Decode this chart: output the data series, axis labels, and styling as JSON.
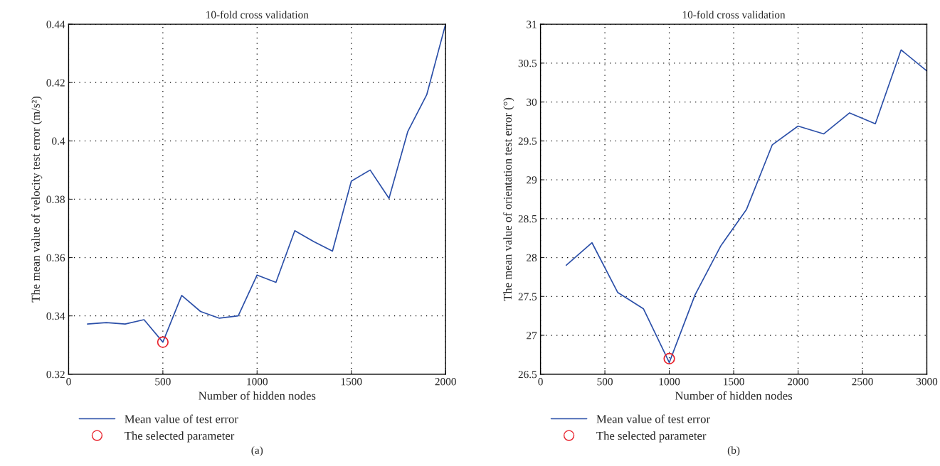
{
  "chart_data": [
    {
      "type": "line",
      "title": "10-fold cross validation",
      "xlabel": "Number of hidden nodes",
      "ylabel": "The mean value of velocity test error (m/s²)",
      "xlim": [
        0,
        2000
      ],
      "xticks": [
        0,
        500,
        1000,
        1500,
        2000
      ],
      "ylim": [
        0.32,
        0.44
      ],
      "yticks": [
        0.32,
        0.34,
        0.36,
        0.38,
        0.4,
        0.42,
        0.44
      ],
      "grid": true,
      "legend": "bottom",
      "annotations": [
        "(a)"
      ],
      "series": [
        {
          "name": "Mean value of test error",
          "color": "#2b4fa8",
          "marker": "none",
          "x": [
            100,
            200,
            300,
            400,
            500,
            600,
            700,
            800,
            900,
            1000,
            1100,
            1200,
            1300,
            1400,
            1500,
            1600,
            1700,
            1800,
            1900,
            2000
          ],
          "values": [
            0.3372,
            0.3377,
            0.3372,
            0.3387,
            0.331,
            0.347,
            0.3415,
            0.3392,
            0.34,
            0.354,
            0.3515,
            0.3692,
            0.3655,
            0.3622,
            0.3862,
            0.39,
            0.3803,
            0.4033,
            0.4158,
            0.44
          ]
        },
        {
          "name": "The selected parameter",
          "type": "scatter",
          "color": "#e8212b",
          "marker": "circle",
          "x": [
            500
          ],
          "values": [
            0.331
          ]
        }
      ]
    },
    {
      "type": "line",
      "title": "10-fold cross validation",
      "xlabel": "Number of hidden nodes",
      "ylabel": "The mean value of orientation test error (°)",
      "xlim": [
        0,
        3000
      ],
      "xticks": [
        0,
        500,
        1000,
        1500,
        2000,
        2500,
        3000
      ],
      "ylim": [
        26.5,
        31
      ],
      "yticks": [
        26.5,
        27,
        27.5,
        28,
        28.5,
        29,
        29.5,
        30,
        30.5,
        31
      ],
      "grid": true,
      "legend": "bottom",
      "annotations": [
        "(b)"
      ],
      "series": [
        {
          "name": "Mean value of test error",
          "color": "#2b4fa8",
          "marker": "none",
          "x": [
            200,
            400,
            600,
            800,
            1000,
            1200,
            1400,
            1600,
            1800,
            2000,
            2200,
            2400,
            2600,
            2800,
            3000
          ],
          "values": [
            27.9,
            28.19,
            27.55,
            27.34,
            26.65,
            27.52,
            28.15,
            28.62,
            29.45,
            29.69,
            29.59,
            29.86,
            29.72,
            30.67,
            30.4
          ]
        },
        {
          "name": "The selected parameter",
          "type": "scatter",
          "color": "#e8212b",
          "marker": "circle",
          "x": [
            1000
          ],
          "values": [
            26.7
          ]
        }
      ]
    }
  ]
}
